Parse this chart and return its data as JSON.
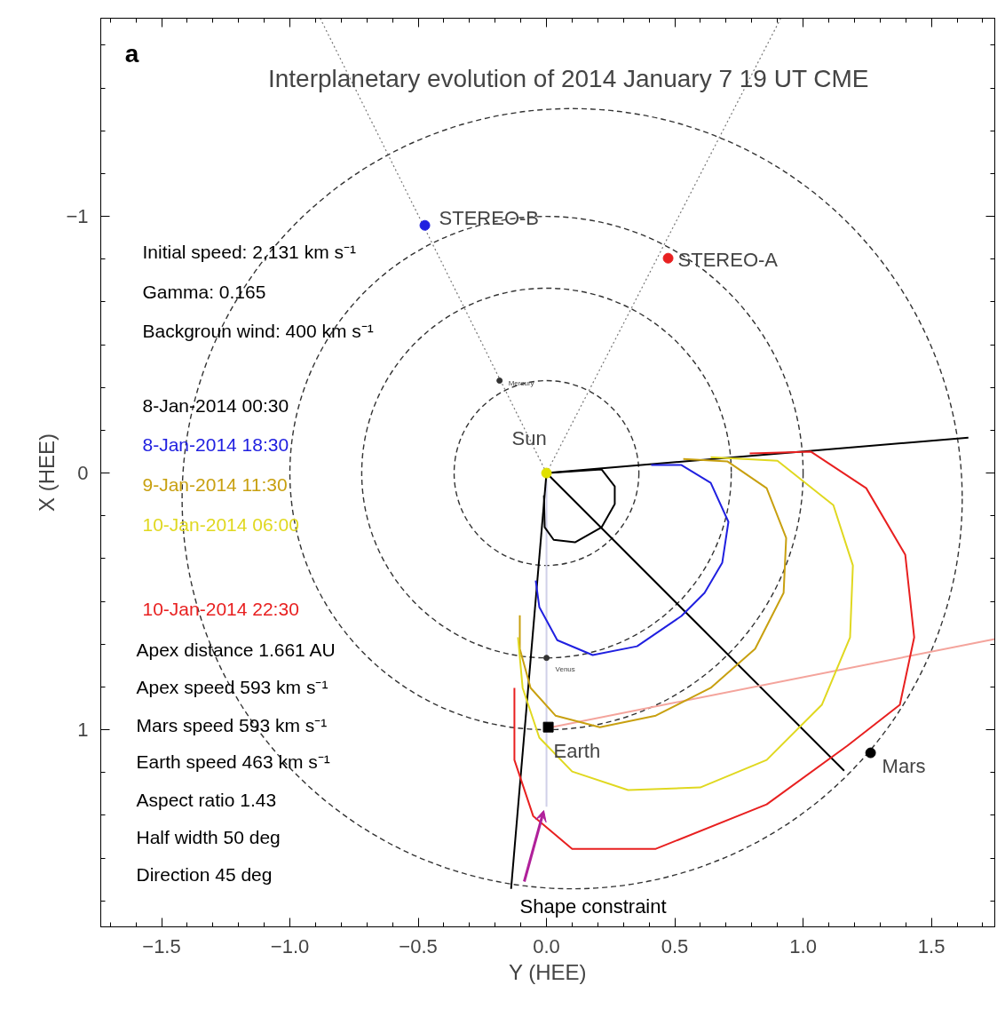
{
  "chart_data": {
    "type": "line",
    "title": "Interplanetary evolution of 2014 January 7 19 UT CME",
    "xlabel": "Y (HEE)",
    "ylabel": "X (HEE)",
    "xlim": [
      -1.737,
      1.747
    ],
    "ylim": [
      1.768,
      -1.772
    ],
    "xticks": [
      {
        "value": -1.5,
        "label": "−1.5"
      },
      {
        "value": -1.0,
        "label": "−1.0"
      },
      {
        "value": -0.5,
        "label": "−0.5"
      },
      {
        "value": 0.0,
        "label": "0.0"
      },
      {
        "value": 0.5,
        "label": "0.5"
      },
      {
        "value": 1.0,
        "label": "1.0"
      },
      {
        "value": 1.5,
        "label": "1.5"
      }
    ],
    "yticks": [
      {
        "value": -1,
        "label": "−1"
      },
      {
        "value": 0,
        "label": "0"
      },
      {
        "value": 1,
        "label": "1"
      }
    ],
    "series": [
      {
        "line_style": "dotted",
        "color": "#777777",
        "x": [
          -0.882,
          0
        ],
        "values": [
          -1.772,
          0
        ]
      },
      {
        "line_style": "dotted",
        "color": "#777777",
        "x": [
          0.913,
          0
        ],
        "values": [
          -1.772,
          0
        ]
      },
      {
        "color": "#d0d0e8",
        "x": [
          0,
          0
        ],
        "values": [
          0,
          1.3
        ]
      },
      {
        "color": "#000000",
        "x": [
          0,
          1.644
        ],
        "values": [
          0,
          -0.138
        ]
      },
      {
        "color": "#000000",
        "x": [
          0,
          -0.138
        ],
        "values": [
          0,
          1.62
        ]
      },
      {
        "color": "#000000",
        "x": [
          0,
          1.16
        ],
        "values": [
          0,
          1.16
        ]
      },
      {
        "color": "#f4a49c",
        "x": [
          0.02,
          1.747
        ],
        "values": [
          0.99,
          0.647
        ]
      },
      {
        "name": "8-Jan-2014 00:30",
        "color": "#000000",
        "x": [
          0.007,
          0.215,
          0.266,
          0.266,
          0.215,
          0.111,
          0.028,
          -0.007,
          -0.01
        ],
        "values": [
          0,
          -0.014,
          0.052,
          0.121,
          0.211,
          0.27,
          0.26,
          0.211,
          0.087
        ]
      },
      {
        "name": "8-Jan-2014 18:30",
        "color": "#2020e0",
        "x": [
          0.408,
          0.526,
          0.64,
          0.709,
          0.685,
          0.616,
          0.526,
          0.353,
          0.18,
          0.042,
          -0.028,
          -0.042
        ],
        "values": [
          -0.031,
          -0.031,
          0.038,
          0.19,
          0.349,
          0.467,
          0.557,
          0.675,
          0.709,
          0.651,
          0.522,
          0.419
        ]
      },
      {
        "name": "9-Jan-2014 11:30",
        "color": "#c8a010",
        "x": [
          0.533,
          0.706,
          0.858,
          0.934,
          0.924,
          0.813,
          0.64,
          0.426,
          0.208,
          0.035,
          -0.062,
          -0.104,
          -0.104
        ],
        "values": [
          -0.055,
          -0.045,
          0.059,
          0.253,
          0.467,
          0.685,
          0.837,
          0.945,
          0.99,
          0.945,
          0.837,
          0.685,
          0.554
        ]
      },
      {
        "name": "10-Jan-2014 06:00",
        "color": "#e0d820",
        "x": [
          0.64,
          0.9,
          1.118,
          1.194,
          1.183,
          1.073,
          0.858,
          0.599,
          0.318,
          0.1,
          -0.028,
          -0.093,
          -0.111
        ],
        "values": [
          -0.062,
          -0.048,
          0.125,
          0.36,
          0.64,
          0.903,
          1.118,
          1.225,
          1.235,
          1.163,
          1.031,
          0.837,
          0.64
        ]
      },
      {
        "name": "10-Jan-2014 22:30",
        "color": "#e82020",
        "x": [
          0.792,
          1.031,
          1.246,
          1.398,
          1.433,
          1.377,
          1.173,
          0.858,
          0.426,
          0.1,
          -0.052,
          -0.125,
          -0.125
        ],
        "values": [
          -0.076,
          -0.083,
          0.059,
          0.318,
          0.64,
          0.903,
          1.062,
          1.291,
          1.464,
          1.464,
          1.336,
          1.118,
          0.837
        ]
      },
      {
        "type": "scatter",
        "marker": "circle",
        "color": "#e0e000",
        "x": [
          0
        ],
        "values": [
          0
        ]
      },
      {
        "type": "scatter",
        "marker": "circle",
        "color": "#2020e0",
        "x": [
          -0.474
        ],
        "values": [
          -0.965
        ]
      },
      {
        "type": "scatter",
        "marker": "circle",
        "color": "#e82020",
        "x": [
          0.474
        ],
        "values": [
          -0.837
        ]
      },
      {
        "type": "scatter",
        "marker": "circle",
        "color": "#333333",
        "x": [
          -0.183,
          0
        ],
        "values": [
          -0.36,
          0.72
        ]
      },
      {
        "type": "scatter",
        "marker": "square",
        "color": "#000000",
        "x": [
          0.007
        ],
        "values": [
          0.99
        ]
      },
      {
        "type": "scatter",
        "marker": "circle",
        "color": "#000000",
        "x": [
          1.263
        ],
        "values": [
          1.09
        ]
      }
    ],
    "annotations": [
      "a",
      "Initial speed: 2,131 km s⁻¹",
      "Gamma: 0.165",
      "Backgroun wind: 400 km s⁻¹",
      "Apex distance 1.661 AU",
      "Apex speed 593 km s⁻¹",
      "Mars speed 593 km s⁻¹",
      "Earth speed 463 km s⁻¹",
      "Aspect ratio 1.43",
      "Half width 50 deg",
      "Direction 45 deg",
      "Shape constraint",
      {
        "text": "STEREO-B",
        "x": -0.474,
        "y": -0.965
      },
      {
        "text": "STEREO-A",
        "x": 0.474,
        "y": -0.837
      },
      {
        "text": "Sun",
        "x": 0,
        "y": 0
      },
      {
        "text": "Mercury",
        "x": -0.183,
        "y": -0.36
      },
      {
        "text": "Venus",
        "x": 0,
        "y": 0.72
      },
      {
        "text": "Earth",
        "x": 0.007,
        "y": 0.99
      },
      {
        "text": "Mars",
        "x": 1.263,
        "y": 1.09
      }
    ]
  }
}
